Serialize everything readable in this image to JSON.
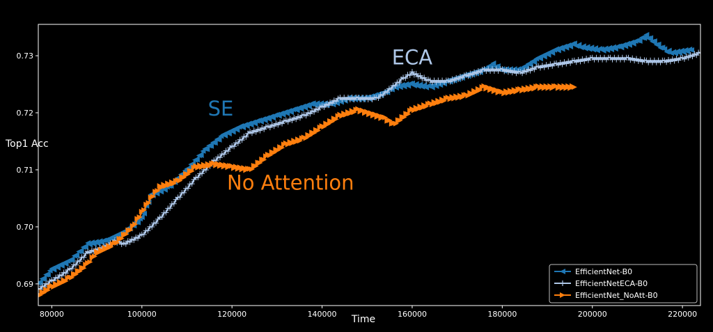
{
  "chart_data": {
    "type": "line",
    "title": "",
    "xlabel": "Time",
    "ylabel": "Top1 Acc",
    "xlim": [
      77000,
      224000
    ],
    "ylim": [
      0.6862,
      0.7355
    ],
    "x_ticks": [
      80000,
      100000,
      120000,
      140000,
      160000,
      180000,
      200000,
      220000
    ],
    "x_tick_labels": [
      "80000",
      "100000",
      "120000",
      "140000",
      "160000",
      "180000",
      "200000",
      "220000"
    ],
    "y_ticks": [
      0.69,
      0.7,
      0.71,
      0.72,
      0.73
    ],
    "y_tick_labels": [
      "0.69",
      "0.70",
      "0.71",
      "0.72",
      "0.73"
    ],
    "grid": false,
    "legend_position": "bottom-right",
    "background": "#000000",
    "series": [
      {
        "name": "EfficientNet-B0",
        "color": "#1f77b4",
        "marker": "triangle-left",
        "points": [
          [
            77000,
            0.69
          ],
          [
            80000,
            0.6925
          ],
          [
            84000,
            0.694
          ],
          [
            86000,
            0.6955
          ],
          [
            88000,
            0.697
          ],
          [
            92000,
            0.6975
          ],
          [
            96000,
            0.699
          ],
          [
            100000,
            0.7015
          ],
          [
            102000,
            0.7055
          ],
          [
            106000,
            0.707
          ],
          [
            110000,
            0.71
          ],
          [
            114000,
            0.7135
          ],
          [
            118000,
            0.716
          ],
          [
            122000,
            0.7175
          ],
          [
            126000,
            0.7185
          ],
          [
            130000,
            0.7195
          ],
          [
            134000,
            0.7205
          ],
          [
            138000,
            0.7215
          ],
          [
            142000,
            0.7215
          ],
          [
            146000,
            0.7225
          ],
          [
            150000,
            0.7225
          ],
          [
            154000,
            0.7235
          ],
          [
            156000,
            0.7245
          ],
          [
            160000,
            0.725
          ],
          [
            164000,
            0.7245
          ],
          [
            168000,
            0.7255
          ],
          [
            172000,
            0.7265
          ],
          [
            176000,
            0.7275
          ],
          [
            178000,
            0.7285
          ],
          [
            180000,
            0.7275
          ],
          [
            184000,
            0.7275
          ],
          [
            188000,
            0.7295
          ],
          [
            192000,
            0.731
          ],
          [
            196000,
            0.732
          ],
          [
            198000,
            0.7315
          ],
          [
            202000,
            0.731
          ],
          [
            206000,
            0.7315
          ],
          [
            210000,
            0.7325
          ],
          [
            212000,
            0.7335
          ],
          [
            216000,
            0.731
          ],
          [
            218000,
            0.7305
          ],
          [
            222000,
            0.731
          ]
        ]
      },
      {
        "name": "EfficientNetECA-B0",
        "color": "#aec7e8",
        "marker": "plus",
        "points": [
          [
            77000,
            0.689
          ],
          [
            80000,
            0.6905
          ],
          [
            84000,
            0.6925
          ],
          [
            88000,
            0.6955
          ],
          [
            92000,
            0.6965
          ],
          [
            94000,
            0.6975
          ],
          [
            96000,
            0.697
          ],
          [
            100000,
            0.6985
          ],
          [
            104000,
            0.7015
          ],
          [
            108000,
            0.705
          ],
          [
            112000,
            0.7085
          ],
          [
            116000,
            0.7115
          ],
          [
            120000,
            0.714
          ],
          [
            124000,
            0.7165
          ],
          [
            128000,
            0.7175
          ],
          [
            132000,
            0.7185
          ],
          [
            136000,
            0.7195
          ],
          [
            140000,
            0.721
          ],
          [
            144000,
            0.7225
          ],
          [
            148000,
            0.7225
          ],
          [
            152000,
            0.7225
          ],
          [
            154000,
            0.7235
          ],
          [
            158000,
            0.726
          ],
          [
            160000,
            0.727
          ],
          [
            164000,
            0.7255
          ],
          [
            168000,
            0.7255
          ],
          [
            172000,
            0.7265
          ],
          [
            176000,
            0.7275
          ],
          [
            180000,
            0.7275
          ],
          [
            184000,
            0.727
          ],
          [
            188000,
            0.728
          ],
          [
            192000,
            0.7285
          ],
          [
            196000,
            0.729
          ],
          [
            200000,
            0.7295
          ],
          [
            204000,
            0.7295
          ],
          [
            208000,
            0.7295
          ],
          [
            212000,
            0.729
          ],
          [
            216000,
            0.729
          ],
          [
            220000,
            0.7295
          ],
          [
            224000,
            0.7305
          ]
        ]
      },
      {
        "name": "EfficientNet_NoAtt-B0",
        "color": "#ff7f0e",
        "marker": "triangle-right",
        "points": [
          [
            77000,
            0.688
          ],
          [
            80000,
            0.6895
          ],
          [
            84000,
            0.691
          ],
          [
            88000,
            0.6935
          ],
          [
            90000,
            0.6955
          ],
          [
            94000,
            0.697
          ],
          [
            96000,
            0.6985
          ],
          [
            98000,
            0.7
          ],
          [
            100000,
            0.7025
          ],
          [
            102000,
            0.705
          ],
          [
            104000,
            0.707
          ],
          [
            108000,
            0.708
          ],
          [
            112000,
            0.7105
          ],
          [
            116000,
            0.711
          ],
          [
            120000,
            0.7105
          ],
          [
            124000,
            0.71
          ],
          [
            128000,
            0.7125
          ],
          [
            132000,
            0.7145
          ],
          [
            136000,
            0.7155
          ],
          [
            140000,
            0.7175
          ],
          [
            144000,
            0.7195
          ],
          [
            148000,
            0.7205
          ],
          [
            150000,
            0.72
          ],
          [
            154000,
            0.719
          ],
          [
            156000,
            0.718
          ],
          [
            160000,
            0.7205
          ],
          [
            164000,
            0.7215
          ],
          [
            168000,
            0.7225
          ],
          [
            172000,
            0.723
          ],
          [
            176000,
            0.7245
          ],
          [
            180000,
            0.7235
          ],
          [
            184000,
            0.724
          ],
          [
            188000,
            0.7245
          ],
          [
            192000,
            0.7245
          ],
          [
            196000,
            0.7245
          ]
        ]
      }
    ],
    "annotations": [
      {
        "text": "SE",
        "x": 117500,
        "y": 0.7195,
        "color": "#1f77b4"
      },
      {
        "text": "ECA",
        "x": 160000,
        "y": 0.7285,
        "color": "#aec7e8"
      },
      {
        "text": "No Attention",
        "x": 133000,
        "y": 0.7065,
        "color": "#ff7f0e"
      }
    ]
  }
}
